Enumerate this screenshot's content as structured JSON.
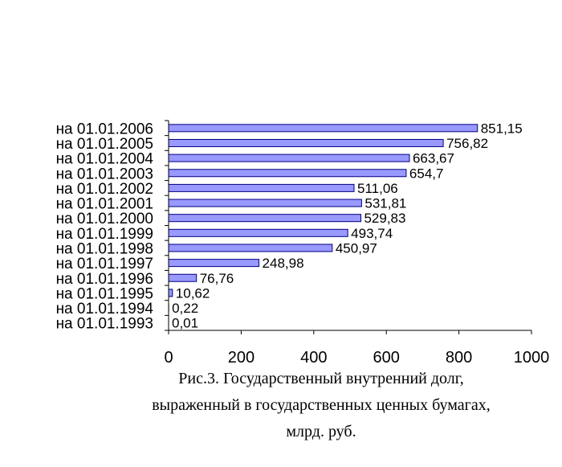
{
  "chart_data": {
    "type": "bar",
    "orientation": "horizontal",
    "categories": [
      "на 01.01.2006",
      "на 01.01.2005",
      "на 01.01.2004",
      "на 01.01.2003",
      "на 01.01.2002",
      "на 01.01.2001",
      "на 01.01.2000",
      "на 01.01.1999",
      "на 01.01.1998",
      "на 01.01.1997",
      "на 01.01.1996",
      "на 01.01.1995",
      "на 01.01.1994",
      "на 01.01.1993"
    ],
    "values": [
      851.15,
      756.82,
      663.67,
      654.7,
      511.06,
      531.81,
      529.83,
      493.74,
      450.97,
      248.98,
      76.76,
      10.62,
      0.22,
      0.01
    ],
    "value_labels": [
      "851,15",
      "756,82",
      "663,67",
      "654,7",
      "511,06",
      "531,81",
      "529,83",
      "493,74",
      "450,97",
      "248,98",
      "76,76",
      "10,62",
      "0,22",
      "0,01"
    ],
    "xlim": [
      0,
      1000
    ],
    "xticks": [
      0,
      200,
      400,
      600,
      800,
      1000
    ],
    "bar_color": "#9999ff",
    "bar_edge_color": "#000080",
    "grid": false,
    "legend": "none",
    "caption_lines": [
      "Рис.3. Государственный внутренний долг,",
      "выраженный в государственных ценных бумагах,",
      "млрд. руб."
    ]
  }
}
